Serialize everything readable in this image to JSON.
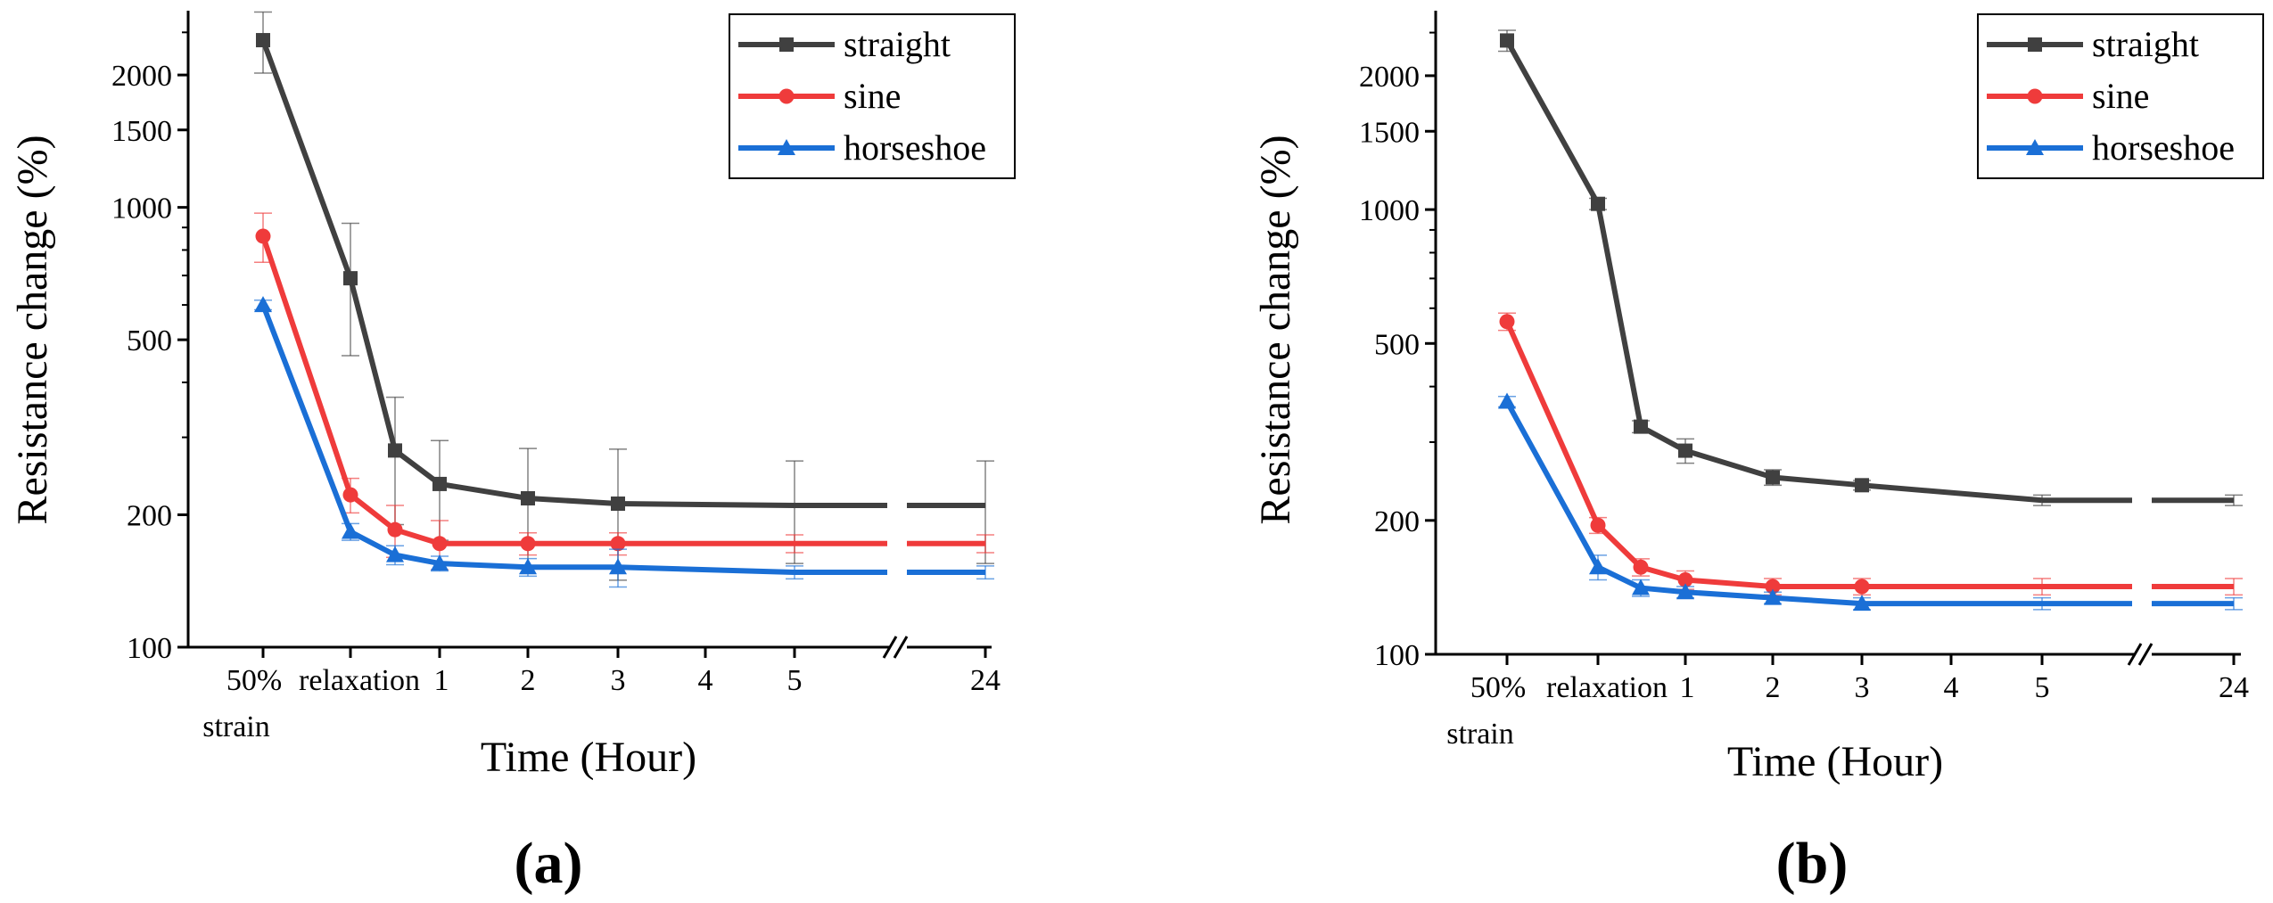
{
  "panels": [
    {
      "panel_label": "(a)",
      "chart_data": {
        "type": "line",
        "title": "",
        "xlabel": "Time (Hour)",
        "ylabel": "Resistance change (%)",
        "yscale": "log",
        "ylim": [
          100,
          2800
        ],
        "ytick_labels": [
          "100",
          "200",
          "500",
          "1000",
          "1500",
          "2000"
        ],
        "yticks": [
          100,
          200,
          500,
          1000,
          1500,
          2000
        ],
        "x_axis": "broken between 5 and 24",
        "xtick_labels": [
          "50%",
          "strain",
          "relaxation",
          "1",
          "2",
          "3",
          "4",
          "5",
          "24"
        ],
        "categories": [
          "50% strain",
          "relaxation",
          "0.5",
          "1",
          "2",
          "3",
          "5",
          "24"
        ],
        "legend_position": "top-right",
        "series": [
          {
            "name": "straight",
            "marker": "square",
            "color": "#404040",
            "values": [
              2400,
              690,
              280,
              235,
              218,
              212,
              210,
              210
            ],
            "errors": [
              380,
              230,
              90,
              60,
              65,
              70,
              55,
              55
            ]
          },
          {
            "name": "sine",
            "marker": "circle",
            "color": "#ef3b3b",
            "values": [
              860,
              222,
              185,
              172,
              172,
              172,
              172,
              172
            ],
            "errors": [
              110,
              20,
              25,
              22,
              10,
              10,
              8,
              8
            ]
          },
          {
            "name": "horseshoe",
            "marker": "triangle",
            "color": "#1a6fd6",
            "values": [
              600,
              183,
              162,
              155,
              152,
              152,
              148,
              148
            ],
            "errors": [
              15,
              8,
              8,
              6,
              7,
              15,
              5,
              5
            ]
          }
        ]
      }
    },
    {
      "panel_label": "(b)",
      "chart_data": {
        "type": "line",
        "title": "",
        "xlabel": "Time (Hour)",
        "ylabel": "Resistance change (%)",
        "yscale": "log",
        "ylim": [
          100,
          2800
        ],
        "ytick_labels": [
          "100",
          "200",
          "500",
          "1000",
          "1500",
          "2000"
        ],
        "yticks": [
          100,
          200,
          500,
          1000,
          1500,
          2000
        ],
        "x_axis": "broken between 5 and 24",
        "xtick_labels": [
          "50%",
          "strain",
          "relaxation",
          "1",
          "2",
          "3",
          "4",
          "5",
          "24"
        ],
        "categories": [
          "50% strain",
          "relaxation",
          "0.5",
          "1",
          "2",
          "3",
          "5",
          "24"
        ],
        "legend_position": "top-right",
        "series": [
          {
            "name": "straight",
            "marker": "square",
            "color": "#404040",
            "values": [
              2400,
              1030,
              325,
              287,
              250,
              240,
              222,
              222
            ],
            "errors": [
              130,
              30,
              10,
              18,
              10,
              6,
              6,
              6
            ]
          },
          {
            "name": "sine",
            "marker": "circle",
            "color": "#ef3b3b",
            "values": [
              560,
              195,
              157,
              147,
              142,
              142,
              142,
              142
            ],
            "errors": [
              25,
              8,
              7,
              7,
              6,
              6,
              6,
              6
            ]
          },
          {
            "name": "horseshoe",
            "marker": "triangle",
            "color": "#1a6fd6",
            "values": [
              370,
              157,
              141,
              138,
              134,
              130,
              130,
              130
            ],
            "errors": [
              10,
              10,
              6,
              4,
              4,
              4,
              4,
              4
            ]
          }
        ]
      }
    }
  ]
}
